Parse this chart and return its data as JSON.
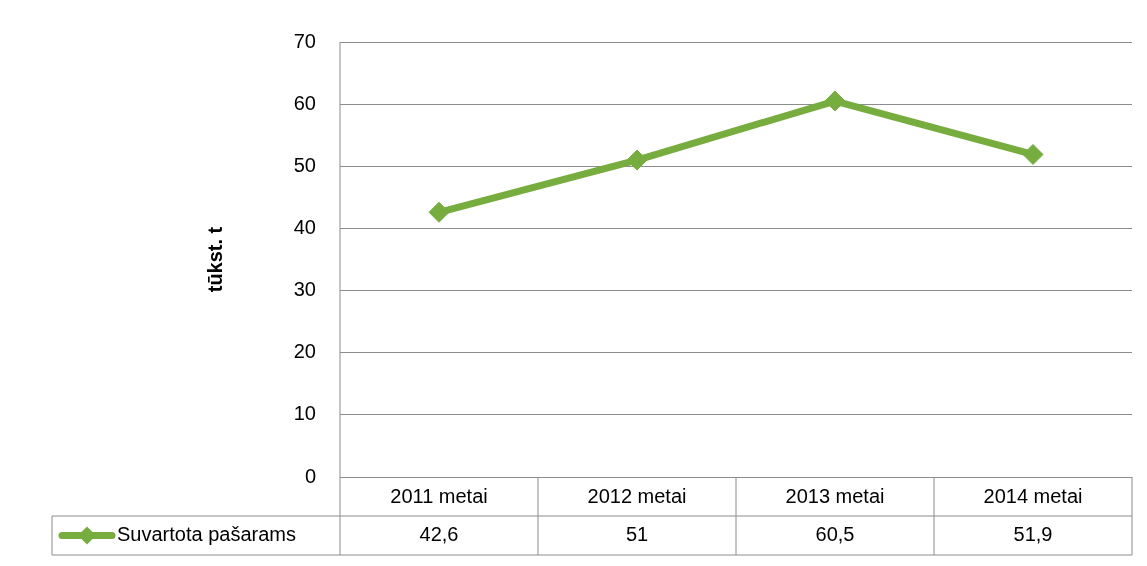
{
  "chart_data": {
    "type": "line",
    "ylabel": "tūkst. t",
    "categories": [
      "2011 metai",
      "2012 metai",
      "2013 metai",
      "2014 metai"
    ],
    "series": [
      {
        "name": "Suvartota pašarams",
        "color": "#77ac3f",
        "values": [
          42.6,
          51,
          60.5,
          51.9
        ],
        "value_labels": [
          "42,6",
          "51",
          "60,5",
          "51,9"
        ]
      }
    ],
    "ylim": [
      0,
      70
    ],
    "yticks": [
      0,
      10,
      20,
      30,
      40,
      50,
      60,
      70
    ],
    "grid": "y",
    "legend": "bottom",
    "marker": "diamond",
    "line_style": "solid"
  }
}
